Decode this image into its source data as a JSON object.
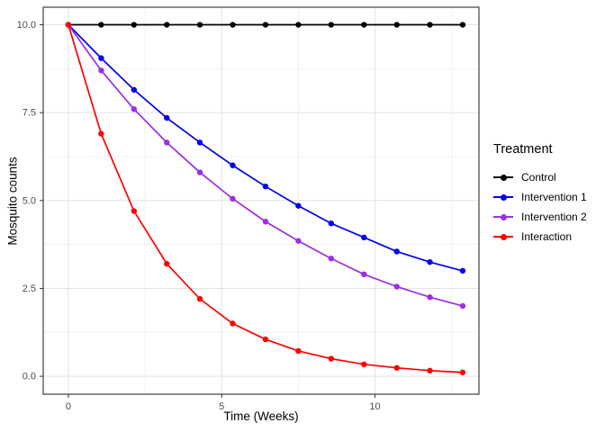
{
  "figure": {
    "background": "#ffffff",
    "panel_border_color": "#404040",
    "grid_major_color": "#e3e3e3",
    "grid_minor_color": "#f1f1f1",
    "tick_label_color": "#4d4d4d"
  },
  "chart_data": {
    "type": "line",
    "title": "",
    "xlabel": "Time (Weeks)",
    "ylabel": "Mosquito counts",
    "legend_title": "Treatment",
    "legend_position": "right",
    "grid": true,
    "x": [
      0,
      1.07,
      2.14,
      3.21,
      4.29,
      5.36,
      6.43,
      7.5,
      8.57,
      9.64,
      10.71,
      11.79,
      12.86
    ],
    "series": [
      {
        "name": "Control",
        "color": "#000000",
        "values": [
          10,
          10,
          10,
          10,
          10,
          10,
          10,
          10,
          10,
          10,
          10,
          10,
          10
        ]
      },
      {
        "name": "Intervention 1",
        "color": "#0000EE",
        "values": [
          10,
          9.05,
          8.15,
          7.35,
          6.65,
          6.0,
          5.4,
          4.85,
          4.35,
          3.95,
          3.55,
          3.25,
          3.0
        ]
      },
      {
        "name": "Intervention 2",
        "color": "#9B2FE2",
        "values": [
          10,
          8.7,
          7.6,
          6.65,
          5.8,
          5.05,
          4.4,
          3.85,
          3.35,
          2.9,
          2.55,
          2.25,
          2.0
        ]
      },
      {
        "name": "Interaction",
        "color": "#FF0000",
        "values": [
          10,
          6.9,
          4.7,
          3.2,
          2.2,
          1.5,
          1.05,
          0.72,
          0.5,
          0.34,
          0.24,
          0.16,
          0.11
        ]
      }
    ],
    "xlim": [
      -0.82,
      13.39
    ],
    "ylim": [
      -0.51,
      10.5
    ],
    "x_ticks": {
      "values": [
        0,
        5,
        10
      ],
      "labels": [
        "0",
        "5",
        "10"
      ]
    },
    "y_ticks": {
      "values": [
        0,
        2.5,
        5,
        7.5,
        10
      ],
      "labels": [
        "0.0",
        "2.5",
        "5.0",
        "7.5",
        "10.0"
      ]
    },
    "x_minor": [
      2.5,
      7.5,
      12.5
    ],
    "y_minor": [
      1.25,
      3.75,
      6.25,
      8.75
    ]
  }
}
